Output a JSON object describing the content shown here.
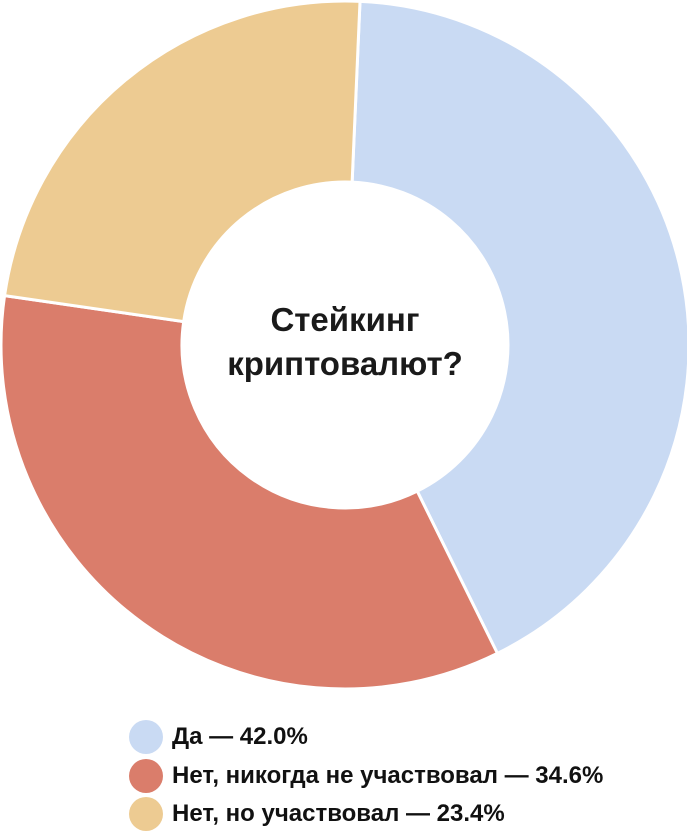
{
  "chart_data": {
    "type": "pie",
    "variant": "donut",
    "title": "Стейкинг криптовалют?",
    "categories": [
      "Да",
      "Нет, никогда не участвовал",
      "Нет, но участвовал"
    ],
    "values": [
      42.0,
      34.6,
      23.4
    ],
    "unit": "%",
    "colors": [
      "#C9DAF3",
      "#DA7D6B",
      "#EDCB92"
    ],
    "legend_labels": [
      "Да — 42.0%",
      "Нет, никогда не участвовал — 34.6%",
      "Нет, но участвовал — 23.4%"
    ],
    "legend_position": "bottom-left",
    "start_angle_deg": 2.5,
    "direction": "clockwise"
  }
}
